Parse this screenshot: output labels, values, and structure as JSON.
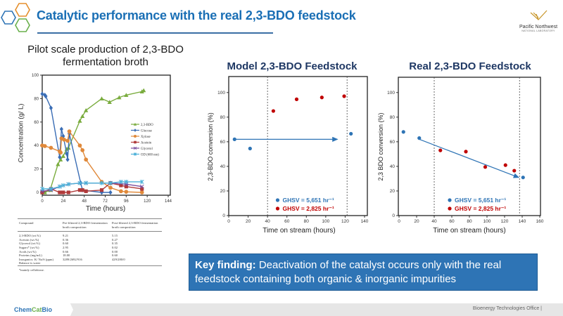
{
  "header": {
    "title": "Catalytic performance with the real 2,3-BDO feedstock",
    "logo_line1": "Pacific Northwest",
    "logo_line2": "NATIONAL LABORATORY",
    "hex_colors": [
      "#e58f2d",
      "#2e74b5",
      "#6ab04c"
    ]
  },
  "left": {
    "subtitle": "Pilot scale production of 2,3-BDO fermentation broth"
  },
  "table": {
    "headers": [
      "Compound",
      "Pre-filtered 2,3-BDO fermentation broth composition",
      "Post-filtered 2,3-BDO fermentation broth composition"
    ],
    "rows": [
      [
        "2,3-BDO (wt.%)",
        "9.21",
        "5.15"
      ],
      [
        "Acetoin (wt.%)",
        "0.36",
        "0.27"
      ],
      [
        "Glycerol (wt.%)",
        "0.60",
        "0.35"
      ],
      [
        "Sugars* (wt.%)",
        "2.95",
        "0.02"
      ],
      [
        "Acids (wt.%)",
        "0.66",
        "0.00"
      ],
      [
        "Proteins (mg/mL)",
        "18.00",
        "0.60"
      ],
      [
        "Inorganics: K/ Na/S (ppm) Balance is water",
        "3289/2692/916",
        "429/280/0"
      ]
    ],
    "footnote": "*mainly cellobiose."
  },
  "key_finding": {
    "label": "Key finding:",
    "text": " Deactivation of the catalyst occurs only with the real feedstock containing both organic & inorganic impurities"
  },
  "footer": {
    "brand_a": "Chem",
    "brand_b": "Cat",
    "brand_c": "Bio",
    "office": "Bioenergy Technologies Office  |"
  },
  "chart_data": [
    {
      "type": "line",
      "title": "Pilot scale production of 2,3-BDO fermentation broth",
      "xlabel": "Time (hours)",
      "ylabel": "Concentration (g/ L)",
      "xlim": [
        0,
        144
      ],
      "ylim": [
        0,
        100
      ],
      "xticks": [
        0,
        24,
        48,
        72,
        96,
        120,
        144
      ],
      "yticks": [
        0,
        20,
        40,
        60,
        80,
        100
      ],
      "legend": "center-right",
      "series": [
        {
          "name": "2,3-BDO",
          "color": "#7aac3e",
          "marker": "triangle",
          "points": [
            [
              0,
              0
            ],
            [
              3,
              0
            ],
            [
              9,
              2
            ],
            [
              18,
              24
            ],
            [
              21,
              28
            ],
            [
              24,
              31
            ],
            [
              28,
              37
            ],
            [
              30,
              38
            ],
            [
              43,
              61
            ],
            [
              46,
              65
            ],
            [
              50,
              70
            ],
            [
              68,
              80
            ],
            [
              77,
              77
            ],
            [
              88,
              81
            ],
            [
              96,
              83
            ],
            [
              114,
              86
            ],
            [
              116,
              87
            ]
          ]
        },
        {
          "name": "Glucose",
          "color": "#3a6db5",
          "marker": "diamond",
          "points": [
            [
              0,
              84
            ],
            [
              3,
              83
            ],
            [
              4,
              82
            ],
            [
              10,
              72
            ],
            [
              20,
              30
            ],
            [
              22,
              54
            ],
            [
              24,
              48
            ],
            [
              28,
              33
            ],
            [
              29,
              28
            ],
            [
              31,
              50
            ],
            [
              44,
              8
            ],
            [
              46,
              2
            ],
            [
              68,
              0
            ],
            [
              78,
              0
            ]
          ]
        },
        {
          "name": "Xylose",
          "color": "#e0893a",
          "marker": "circle",
          "points": [
            [
              0,
              40
            ],
            [
              3,
              39.5
            ],
            [
              10,
              38
            ],
            [
              20,
              35
            ],
            [
              21,
              34
            ],
            [
              22,
              46
            ],
            [
              25,
              45
            ],
            [
              29,
              44
            ],
            [
              31,
              52
            ],
            [
              43,
              40
            ],
            [
              46,
              36
            ],
            [
              50,
              28
            ],
            [
              68,
              9
            ],
            [
              78,
              4
            ],
            [
              90,
              1
            ],
            [
              96,
              0.5
            ],
            [
              114,
              0
            ]
          ]
        },
        {
          "name": "Acetoin",
          "color": "#b03a3a",
          "marker": "square",
          "points": [
            [
              0,
              0
            ],
            [
              10,
              3
            ],
            [
              20,
              0
            ],
            [
              24,
              0
            ],
            [
              30,
              0
            ],
            [
              43,
              2
            ],
            [
              46,
              2
            ],
            [
              50,
              1
            ],
            [
              68,
              2
            ],
            [
              78,
              8
            ],
            [
              90,
              6
            ],
            [
              96,
              5
            ],
            [
              114,
              3
            ]
          ]
        },
        {
          "name": "Glycerol",
          "color": "#7a4e9e",
          "marker": "x",
          "points": [
            [
              0,
              1
            ],
            [
              10,
              2
            ],
            [
              20,
              5
            ],
            [
              30,
              7
            ],
            [
              43,
              8
            ],
            [
              50,
              8
            ],
            [
              78,
              8
            ],
            [
              96,
              7
            ],
            [
              114,
              5
            ]
          ]
        },
        {
          "name": "OD (600 nm)",
          "color": "#4ab0d8",
          "marker": "star",
          "points": [
            [
              0,
              3
            ],
            [
              10,
              3
            ],
            [
              20,
              5
            ],
            [
              24,
              6
            ],
            [
              30,
              7
            ],
            [
              43,
              8
            ],
            [
              50,
              8
            ],
            [
              68,
              8
            ],
            [
              78,
              8
            ],
            [
              90,
              9
            ],
            [
              96,
              9
            ],
            [
              114,
              9
            ]
          ]
        }
      ]
    },
    {
      "type": "scatter",
      "title": "Model 2,3-BDO Feedstock",
      "xlabel": "Time on stream (hours)",
      "ylabel": "2,3-BDO conversion (%)",
      "xlim": [
        0,
        140
      ],
      "ylim": [
        0,
        105
      ],
      "xticks": [
        0,
        20,
        40,
        60,
        80,
        100,
        120,
        140
      ],
      "yticks": [
        0,
        20,
        40,
        60,
        80,
        100
      ],
      "vlines": [
        40,
        122
      ],
      "arrow": [
        [
          6,
          62
        ],
        [
          112,
          62
        ]
      ],
      "legend": "bottom-center",
      "series": [
        {
          "name": "GHSV = 5,651 hr⁻¹",
          "color": "#2e74b5",
          "points": [
            [
              6,
              62
            ],
            [
              22,
              54.5
            ],
            [
              126,
              66.5
            ]
          ]
        },
        {
          "name": "GHSV = 2,825 hr⁻¹",
          "color": "#c00000",
          "points": [
            [
              46,
              85
            ],
            [
              70,
              94.5
            ],
            [
              96,
              96
            ],
            [
              119,
              97
            ]
          ]
        }
      ]
    },
    {
      "type": "scatter",
      "title": "Real 2,3-BDO Feedstock",
      "xlabel": "Time on stream (hours)",
      "ylabel": "2,3 BDO conversion (%)",
      "xlim": [
        0,
        160
      ],
      "ylim": [
        0,
        105
      ],
      "xticks": [
        0,
        20,
        40,
        60,
        80,
        100,
        120,
        140,
        160
      ],
      "yticks": [
        0,
        20,
        40,
        60,
        80,
        100
      ],
      "vlines": [
        40,
        137
      ],
      "arrow": [
        [
          23,
          62
        ],
        [
          136,
          31
        ]
      ],
      "legend": "bottom-center",
      "series": [
        {
          "name": "GHSV = 5,651 hr⁻¹",
          "color": "#2e74b5",
          "points": [
            [
              5,
              68
            ],
            [
              23,
              63
            ],
            [
              141,
              31
            ]
          ]
        },
        {
          "name": "GHSV = 2,825 hr⁻¹",
          "color": "#c00000",
          "points": [
            [
              47,
              53
            ],
            [
              76,
              52
            ],
            [
              98,
              39.5
            ],
            [
              121,
              41
            ],
            [
              131,
              36.5
            ]
          ]
        }
      ]
    }
  ]
}
